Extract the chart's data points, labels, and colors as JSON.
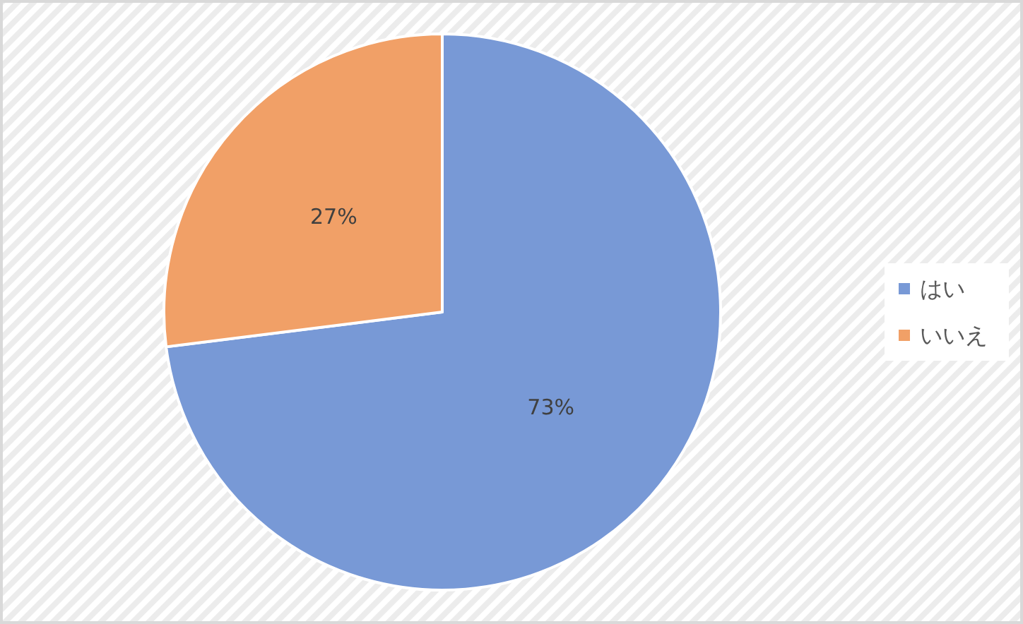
{
  "chart_data": {
    "type": "pie",
    "categories": [
      "はい",
      "いいえ"
    ],
    "values": [
      73,
      27
    ],
    "colors": [
      "#7899d6",
      "#f1a067"
    ],
    "value_labels": [
      "73%",
      "27%"
    ],
    "legend": "right"
  }
}
